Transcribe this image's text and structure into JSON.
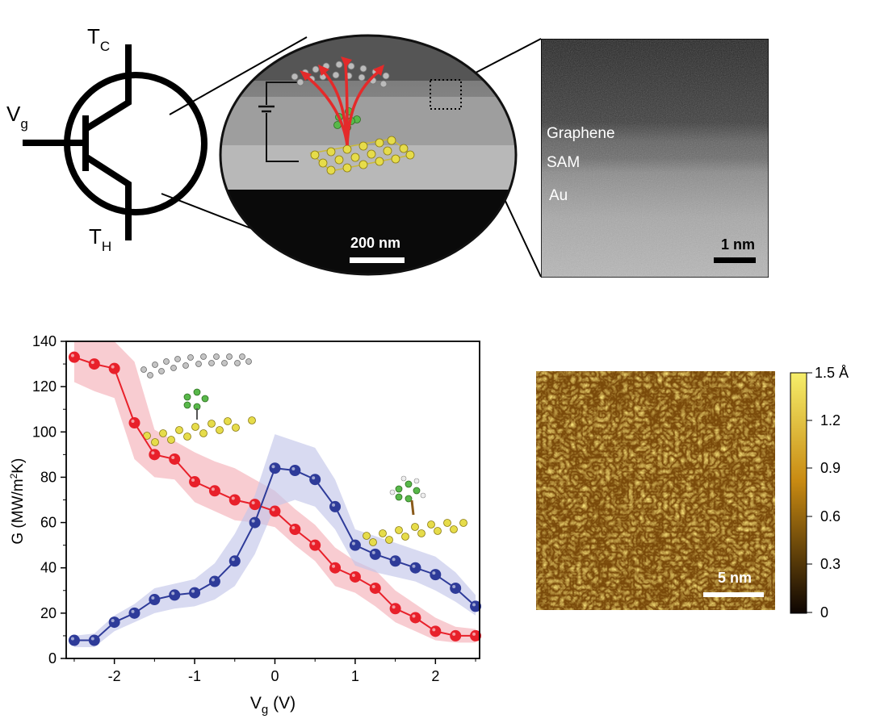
{
  "transistor": {
    "top_label": "T",
    "top_sub": "C",
    "left_label": "V",
    "left_sub": "g",
    "bottom_label": "T",
    "bottom_sub": "H"
  },
  "sem_view": {
    "scale_bar": "200 nm"
  },
  "stem_view": {
    "layers": [
      "Graphene",
      "SAM",
      "Au"
    ],
    "scale_bar": "1 nm"
  },
  "stm_view": {
    "scale_bar": "5 nm",
    "colorbar_ticks": [
      "1.5 Å",
      "1.2",
      "0.9",
      "0.6",
      "0.3",
      "0"
    ],
    "colors": {
      "high": "#f6ee6a",
      "mid": "#c88a12",
      "low": "#0d0502"
    }
  },
  "chart_data": {
    "type": "line",
    "xlabel_main": "V",
    "xlabel_sub": "g",
    "xlabel_unit": " (V)",
    "ylabel_main": "G (MW/m",
    "ylabel_sup": "2",
    "ylabel_tail": "K)",
    "xlim": [
      -2.6,
      2.55
    ],
    "ylim": [
      0,
      140
    ],
    "xticks": [
      -2,
      -1,
      0,
      1,
      2
    ],
    "xtick_labels": [
      "-2",
      "-1",
      "0",
      "1",
      "2"
    ],
    "yticks": [
      0,
      20,
      40,
      60,
      80,
      100,
      120,
      140
    ],
    "ytick_labels": [
      "0",
      "20",
      "40",
      "60",
      "80",
      "100",
      "120",
      "140"
    ],
    "x": [
      -2.5,
      -2.25,
      -2.0,
      -1.75,
      -1.5,
      -1.25,
      -1.0,
      -0.75,
      -0.5,
      -0.25,
      0.0,
      0.25,
      0.5,
      0.75,
      1.0,
      1.25,
      1.5,
      1.75,
      2.0,
      2.25,
      2.5
    ],
    "series": [
      {
        "color": "#e8202a",
        "band_color": "#f4b0b8",
        "values": [
          133,
          130,
          128,
          104,
          90,
          88,
          78,
          74,
          70,
          68,
          65,
          57,
          50,
          40,
          36,
          31,
          22,
          18,
          12,
          10,
          10
        ],
        "band_upper": [
          141,
          140,
          140,
          131,
          101,
          96,
          91,
          87,
          84,
          79,
          74,
          66,
          59,
          49,
          43,
          39,
          30,
          24,
          18,
          14,
          13
        ],
        "band_lower": [
          122,
          118,
          115,
          88,
          80,
          79,
          69,
          65,
          61,
          60,
          58,
          50,
          43,
          32,
          29,
          23,
          16,
          12,
          8,
          7,
          7
        ]
      },
      {
        "color": "#2e3b99",
        "band_color": "#c3c6ea",
        "values": [
          8,
          8,
          16,
          20,
          26,
          28,
          29,
          34,
          43,
          60,
          84,
          83,
          79,
          67,
          50,
          46,
          43,
          40,
          37,
          31,
          23
        ],
        "band_upper": [
          10,
          11,
          19,
          24,
          31,
          33,
          35,
          42,
          55,
          72,
          99,
          96,
          93,
          79,
          57,
          54,
          51,
          48,
          45,
          38,
          28
        ],
        "band_lower": [
          5,
          5,
          12,
          16,
          20,
          22,
          23,
          26,
          32,
          46,
          67,
          70,
          67,
          57,
          41,
          38,
          36,
          34,
          30,
          25,
          19
        ]
      }
    ]
  }
}
